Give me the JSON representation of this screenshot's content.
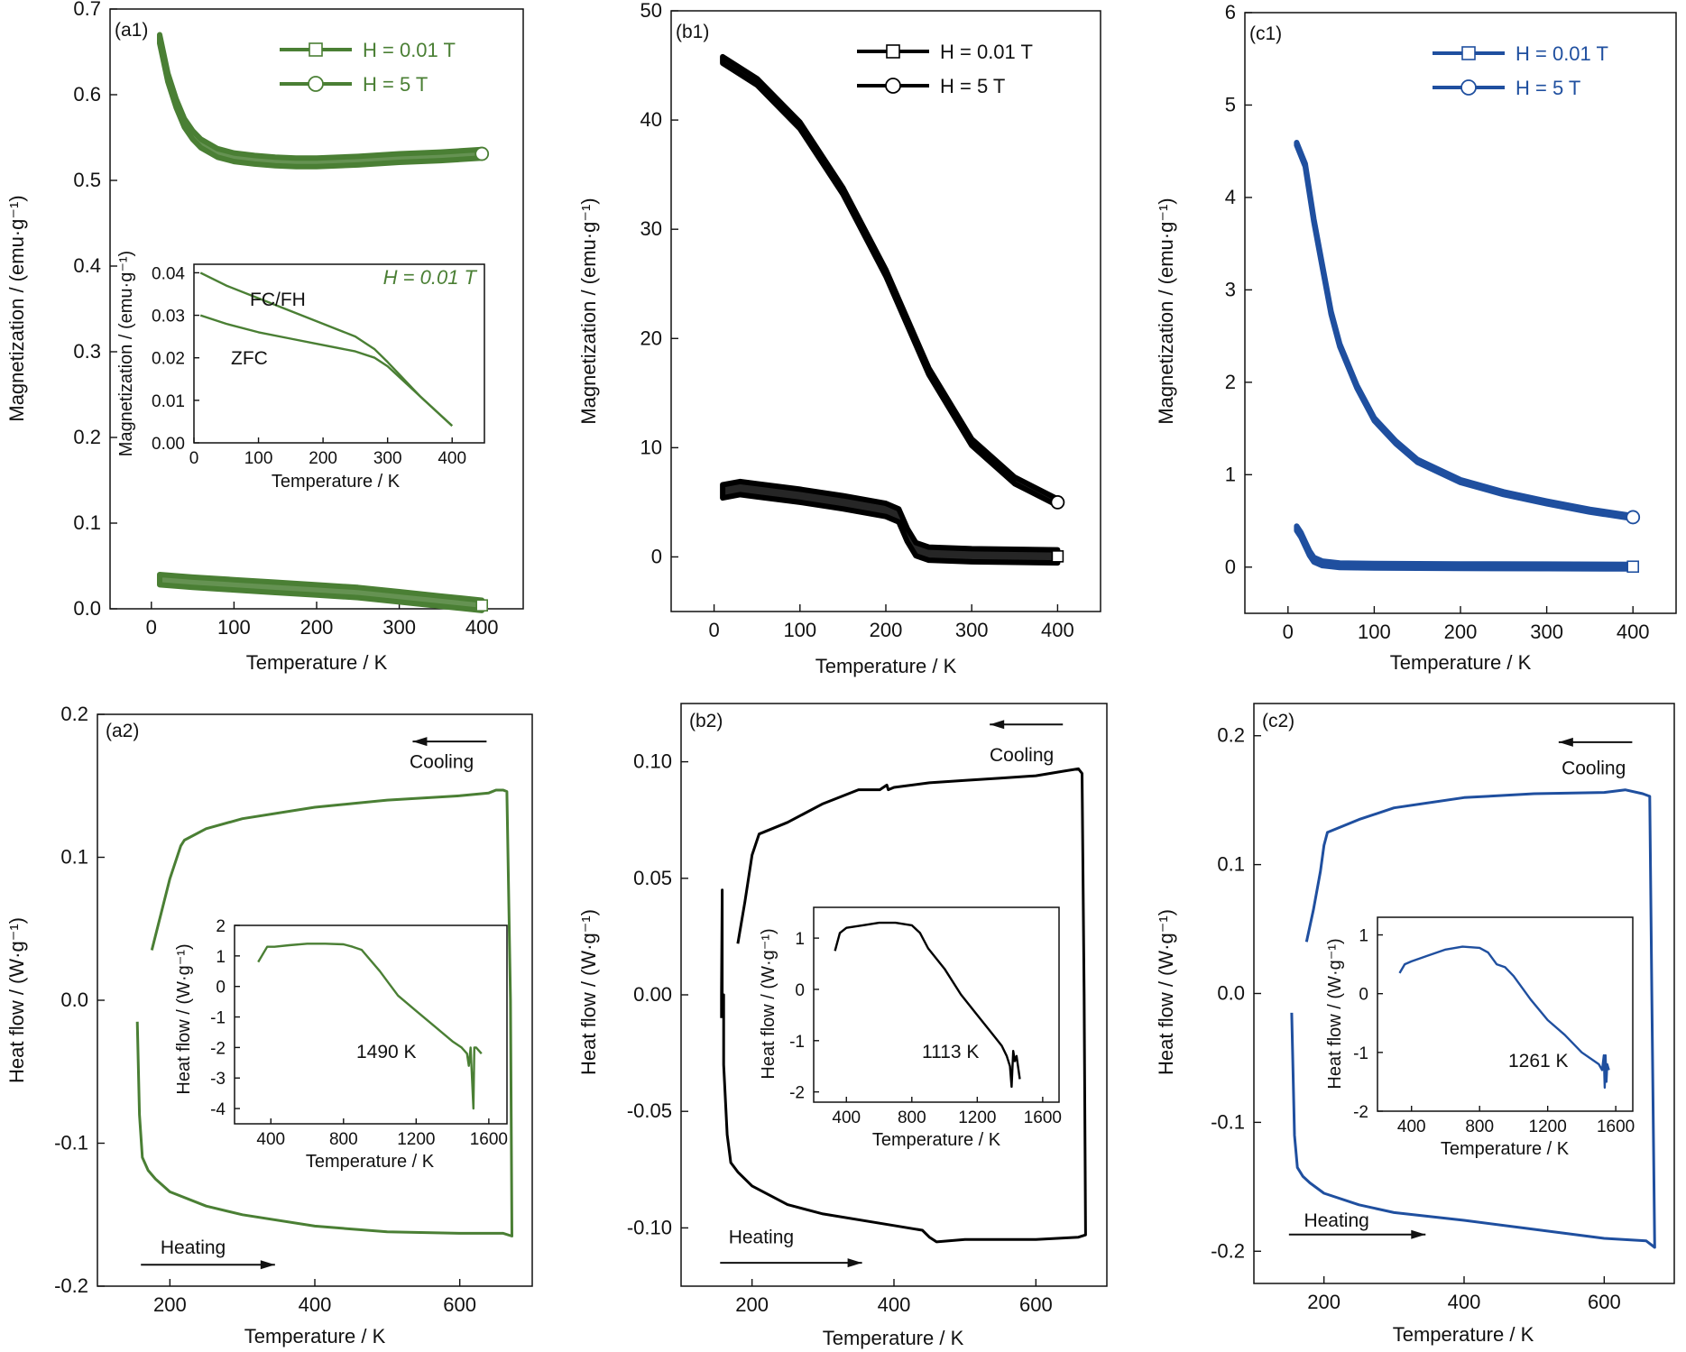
{
  "chart_data": [
    {
      "id": "a1",
      "type": "scatter",
      "panel_label": "(a1)",
      "color": "#4a7f34",
      "xlabel": "Temperature / K",
      "ylabel": "Magnetization / (emu·g⁻¹)",
      "xlim": [
        -50,
        450
      ],
      "ylim": [
        0,
        0.7
      ],
      "xticks": [
        0,
        100,
        200,
        300,
        400
      ],
      "yticks": [
        0.0,
        0.1,
        0.2,
        0.3,
        0.4,
        0.5,
        0.6,
        0.7
      ],
      "ytick_labels": [
        "0.0",
        "0.1",
        "0.2",
        "0.3",
        "0.4",
        "0.5",
        "0.6",
        "0.7"
      ],
      "legend": [
        "H = 0.01 T",
        "H = 5 T"
      ],
      "legend_position": "top-right",
      "series": [
        {
          "name": "H = 0.01 T",
          "marker": "square",
          "band": 0.012,
          "x": [
            10,
            50,
            100,
            150,
            200,
            250,
            300,
            350,
            400
          ],
          "y": [
            0.034,
            0.031,
            0.028,
            0.025,
            0.022,
            0.019,
            0.014,
            0.009,
            0.004
          ]
        },
        {
          "name": "H = 5 T",
          "marker": "circle",
          "band": 0.01,
          "x": [
            10,
            20,
            30,
            40,
            50,
            60,
            80,
            100,
            125,
            150,
            175,
            200,
            250,
            300,
            350,
            400
          ],
          "y": [
            0.665,
            0.62,
            0.59,
            0.567,
            0.553,
            0.543,
            0.532,
            0.527,
            0.524,
            0.522,
            0.521,
            0.521,
            0.523,
            0.526,
            0.528,
            0.531
          ]
        }
      ],
      "inset": {
        "xlabel": "Temperature / K",
        "ylabel": "Magnetization / (emu·g⁻¹)",
        "xlim": [
          0,
          450
        ],
        "ylim": [
          0,
          0.042
        ],
        "xticks": [
          0,
          100,
          200,
          300,
          400
        ],
        "xtick_labels": [
          "0",
          "100",
          "200",
          "300",
          "400"
        ],
        "yticks": [
          0,
          0.01,
          0.02,
          0.03,
          0.04
        ],
        "ytick_labels": [
          "0.00",
          "0.01",
          "0.02",
          "0.03",
          "0.04"
        ],
        "title_note": "H = 0.01 T",
        "series": [
          {
            "name": "FC/FH",
            "x": [
              10,
              50,
              100,
              150,
              200,
              250,
              280,
              300,
              350,
              400
            ],
            "y": [
              0.04,
              0.037,
              0.034,
              0.031,
              0.028,
              0.025,
              0.022,
              0.019,
              0.011,
              0.004
            ]
          },
          {
            "name": "ZFC",
            "x": [
              10,
              50,
              100,
              150,
              200,
              250,
              280,
              300,
              350,
              400
            ],
            "y": [
              0.03,
              0.028,
              0.026,
              0.0245,
              0.023,
              0.0215,
              0.02,
              0.018,
              0.011,
              0.004
            ]
          }
        ],
        "annotations": [
          {
            "text": "FC/FH",
            "x": 265,
            "y": 0.032
          },
          {
            "text": "ZFC",
            "x": 100,
            "y": 0.0225
          }
        ]
      }
    },
    {
      "id": "b1",
      "type": "scatter",
      "panel_label": "(b1)",
      "color": "#000000",
      "xlabel": "Temperature / K",
      "ylabel": "Magnetization / (emu·g⁻¹)",
      "xlim": [
        -50,
        450
      ],
      "ylim": [
        -5,
        50
      ],
      "xticks": [
        0,
        100,
        200,
        300,
        400
      ],
      "yticks": [
        0,
        10,
        20,
        30,
        40,
        50
      ],
      "ytick_labels": [
        "0",
        "10",
        "20",
        "30",
        "40",
        "50"
      ],
      "legend": [
        "H = 0.01 T",
        "H = 5 T"
      ],
      "legend_position": "top-right",
      "series": [
        {
          "name": "H = 0.01 T",
          "marker": "square",
          "band": 1.2,
          "x": [
            10,
            30,
            50,
            100,
            150,
            200,
            215,
            225,
            235,
            250,
            300,
            350,
            400
          ],
          "y": [
            6.0,
            6.3,
            6.1,
            5.6,
            5.0,
            4.3,
            3.8,
            2.0,
            0.7,
            0.3,
            0.15,
            0.1,
            0.05
          ]
        },
        {
          "name": "H = 5 T",
          "marker": "circle",
          "band": 0.6,
          "x": [
            10,
            50,
            100,
            150,
            200,
            250,
            300,
            350,
            400
          ],
          "y": [
            45.5,
            43.5,
            39.5,
            33.5,
            26.0,
            17.0,
            10.5,
            7.0,
            5.0
          ]
        }
      ]
    },
    {
      "id": "c1",
      "type": "scatter",
      "panel_label": "(c1)",
      "color": "#1f4f9f",
      "xlabel": "Temperature / K",
      "ylabel": "Magnetization / (emu·g⁻¹)",
      "xlim": [
        -50,
        450
      ],
      "ylim": [
        -0.5,
        6
      ],
      "xticks": [
        0,
        100,
        200,
        300,
        400
      ],
      "yticks": [
        0,
        1,
        2,
        3,
        4,
        5,
        6
      ],
      "ytick_labels": [
        "0",
        "1",
        "2",
        "3",
        "4",
        "5",
        "6"
      ],
      "legend": [
        "H = 0.01 T",
        "H = 5 T"
      ],
      "legend_position": "top-right",
      "series": [
        {
          "name": "H = 0.01 T",
          "marker": "square",
          "band": 0.05,
          "x": [
            10,
            15,
            20,
            25,
            30,
            40,
            60,
            100,
            200,
            300,
            400
          ],
          "y": [
            0.42,
            0.35,
            0.25,
            0.15,
            0.08,
            0.04,
            0.02,
            0.015,
            0.01,
            0.008,
            0.005
          ]
        },
        {
          "name": "H = 5 T",
          "marker": "circle",
          "band": 0.03,
          "x": [
            10,
            20,
            30,
            40,
            50,
            60,
            80,
            100,
            125,
            150,
            200,
            250,
            300,
            350,
            400
          ],
          "y": [
            4.58,
            4.35,
            3.75,
            3.25,
            2.75,
            2.4,
            1.95,
            1.6,
            1.35,
            1.15,
            0.93,
            0.8,
            0.7,
            0.61,
            0.54
          ]
        }
      ]
    },
    {
      "id": "a2",
      "type": "line",
      "panel_label": "(a2)",
      "color": "#4a7f34",
      "xlabel": "Temperature / K",
      "ylabel": "Heat flow / (W·g⁻¹)",
      "xlim": [
        100,
        700
      ],
      "ylim": [
        -0.2,
        0.2
      ],
      "xticks": [
        200,
        400,
        600
      ],
      "yticks": [
        -0.2,
        -0.1,
        0.0,
        0.1,
        0.2
      ],
      "ytick_labels": [
        "-0.2",
        "-0.1",
        "0.0",
        "0.1",
        "0.2"
      ],
      "annotations": [
        {
          "text": "Cooling",
          "x": 575,
          "y": 0.167
        },
        {
          "text": "Heating",
          "x": 232,
          "y": -0.173
        }
      ],
      "arrows": [
        {
          "x0": 637,
          "x1": 535,
          "y": 0.181
        },
        {
          "x0": 160,
          "x1": 345,
          "y": -0.185
        }
      ],
      "series": [
        {
          "name": "",
          "x": [
            175,
            185,
            200,
            215,
            220,
            250,
            300,
            400,
            500,
            600,
            640,
            650,
            660,
            665,
            670,
            672,
            660,
            600,
            500,
            400,
            300,
            250,
            200,
            180,
            170,
            162,
            158,
            155
          ],
          "y": [
            0.035,
            0.055,
            0.085,
            0.108,
            0.112,
            0.12,
            0.127,
            0.135,
            0.14,
            0.143,
            0.145,
            0.147,
            0.147,
            0.146,
            0.0,
            -0.165,
            -0.163,
            -0.163,
            -0.162,
            -0.158,
            -0.15,
            -0.144,
            -0.134,
            -0.125,
            -0.119,
            -0.11,
            -0.08,
            -0.015
          ]
        }
      ],
      "inset": {
        "xlabel": "Temperature / K",
        "ylabel": "Heat flow / (W·g⁻¹)",
        "xlim": [
          200,
          1700
        ],
        "ylim": [
          -4.5,
          2
        ],
        "xticks": [
          400,
          800,
          1200,
          1600
        ],
        "xtick_labels": [
          "400",
          "800",
          "1200",
          "1600"
        ],
        "yticks": [
          -4,
          -3,
          -2,
          -1,
          0,
          1,
          2
        ],
        "ytick_labels": [
          "-4",
          "-3",
          "-2",
          "-1",
          "0",
          "1",
          "2"
        ],
        "note": "1490 K",
        "series": [
          {
            "name": "",
            "x": [
              330,
              380,
              420,
              500,
              600,
              700,
              800,
              850,
              900,
              1000,
              1050,
              1100,
              1200,
              1300,
              1400,
              1450,
              1480,
              1490,
              1500,
              1510,
              1515,
              1520,
              1530,
              1560
            ],
            "y": [
              0.8,
              1.3,
              1.3,
              1.35,
              1.4,
              1.4,
              1.38,
              1.3,
              1.2,
              0.5,
              0.1,
              -0.3,
              -0.8,
              -1.3,
              -1.8,
              -2.0,
              -2.2,
              -2.6,
              -2.0,
              -3.3,
              -4.0,
              -2.0,
              -2.0,
              -2.2
            ]
          }
        ]
      }
    },
    {
      "id": "b2",
      "type": "line",
      "panel_label": "(b2)",
      "color": "#000000",
      "xlabel": "Temperature / K",
      "ylabel": "Heat flow / (W·g⁻¹)",
      "xlim": [
        100,
        700
      ],
      "ylim": [
        -0.125,
        0.125
      ],
      "xticks": [
        200,
        400,
        600
      ],
      "yticks": [
        -0.1,
        -0.05,
        0.0,
        0.05,
        0.1
      ],
      "ytick_labels": [
        "-0.10",
        "-0.05",
        "0.00",
        "0.05",
        "0.10"
      ],
      "annotations": [
        {
          "text": "Cooling",
          "x": 580,
          "y": 0.103
        },
        {
          "text": "Heating",
          "x": 213,
          "y": -0.104
        }
      ],
      "arrows": [
        {
          "x0": 638,
          "x1": 535,
          "y": 0.116
        },
        {
          "x0": 155,
          "x1": 355,
          "y": -0.115
        }
      ],
      "series": [
        {
          "name": "",
          "x": [
            180,
            190,
            200,
            210,
            250,
            300,
            350,
            380,
            390,
            392,
            400,
            450,
            500,
            550,
            600,
            640,
            660,
            665,
            668,
            670,
            660,
            600,
            500,
            460,
            450,
            440,
            400,
            300,
            250,
            200,
            180,
            170,
            165,
            160,
            160,
            158,
            158,
            157,
            157
          ],
          "y": [
            0.022,
            0.04,
            0.06,
            0.069,
            0.074,
            0.082,
            0.088,
            0.088,
            0.09,
            0.088,
            0.089,
            0.091,
            0.092,
            0.093,
            0.094,
            0.096,
            0.097,
            0.095,
            0.0,
            -0.103,
            -0.104,
            -0.105,
            -0.105,
            -0.106,
            -0.104,
            -0.101,
            -0.099,
            -0.094,
            -0.09,
            -0.082,
            -0.076,
            -0.072,
            -0.06,
            -0.03,
            0.0,
            -0.005,
            0.045,
            0.0,
            -0.01
          ]
        }
      ],
      "inset": {
        "xlabel": "Temperature / K",
        "ylabel": "Heat flow / (W·g⁻¹)",
        "xlim": [
          200,
          1700
        ],
        "ylim": [
          -2.2,
          1.6
        ],
        "xticks": [
          400,
          800,
          1200,
          1600
        ],
        "xtick_labels": [
          "400",
          "800",
          "1200",
          "1600"
        ],
        "yticks": [
          -2,
          -1,
          0,
          1
        ],
        "ytick_labels": [
          "-2",
          "-1",
          "0",
          "1"
        ],
        "note": "1113 K",
        "series": [
          {
            "name": "",
            "x": [
              330,
              360,
              400,
              500,
              600,
              700,
              800,
              850,
              900,
              1000,
              1100,
              1200,
              1300,
              1350,
              1380,
              1400,
              1410,
              1420,
              1430,
              1440,
              1460
            ],
            "y": [
              0.75,
              1.1,
              1.2,
              1.25,
              1.3,
              1.3,
              1.25,
              1.1,
              0.8,
              0.4,
              -0.1,
              -0.5,
              -0.9,
              -1.1,
              -1.3,
              -1.5,
              -1.9,
              -1.2,
              -1.4,
              -1.3,
              -1.75
            ]
          }
        ]
      }
    },
    {
      "id": "c2",
      "type": "line",
      "panel_label": "(c2)",
      "color": "#1f4f9f",
      "xlabel": "Temperature / K",
      "ylabel": "Heat flow / (W·g⁻¹)",
      "xlim": [
        100,
        700
      ],
      "ylim": [
        -0.225,
        0.225
      ],
      "xticks": [
        200,
        400,
        600
      ],
      "yticks": [
        -0.2,
        -0.1,
        0.0,
        0.1,
        0.2
      ],
      "ytick_labels": [
        "-0.2",
        "-0.1",
        "0.0",
        "0.1",
        "0.2"
      ],
      "annotations": [
        {
          "text": "Cooling",
          "x": 585,
          "y": 0.175
        },
        {
          "text": "Heating",
          "x": 218,
          "y": -0.176
        }
      ],
      "arrows": [
        {
          "x0": 640,
          "x1": 535,
          "y": 0.195
        },
        {
          "x0": 150,
          "x1": 345,
          "y": -0.187
        }
      ],
      "series": [
        {
          "name": "",
          "x": [
            175,
            185,
            195,
            200,
            205,
            250,
            300,
            400,
            500,
            600,
            630,
            655,
            665,
            668,
            672,
            660,
            600,
            500,
            400,
            300,
            250,
            200,
            180,
            170,
            162,
            158,
            154
          ],
          "y": [
            0.04,
            0.065,
            0.095,
            0.115,
            0.125,
            0.135,
            0.144,
            0.152,
            0.155,
            0.156,
            0.158,
            0.155,
            0.153,
            0.0,
            -0.197,
            -0.192,
            -0.19,
            -0.183,
            -0.176,
            -0.17,
            -0.164,
            -0.155,
            -0.147,
            -0.142,
            -0.135,
            -0.11,
            -0.015
          ]
        }
      ],
      "inset": {
        "xlabel": "Temperature / K",
        "ylabel": "Heat flow / (W·g⁻¹)",
        "xlim": [
          200,
          1700
        ],
        "ylim": [
          -2,
          1.3
        ],
        "xticks": [
          400,
          800,
          1200,
          1600
        ],
        "xtick_labels": [
          "400",
          "800",
          "1200",
          "1600"
        ],
        "yticks": [
          -2,
          -1,
          0,
          1
        ],
        "ytick_labels": [
          "-2",
          "-1",
          "0",
          "1"
        ],
        "note": "1261 K",
        "series": [
          {
            "name": "",
            "x": [
              330,
              360,
              400,
              500,
              600,
              700,
              800,
              850,
              900,
              950,
              1000,
              1100,
              1200,
              1300,
              1400,
              1500,
              1520,
              1530,
              1535,
              1540,
              1545,
              1550,
              1560
            ],
            "y": [
              0.35,
              0.5,
              0.55,
              0.65,
              0.75,
              0.8,
              0.78,
              0.7,
              0.5,
              0.45,
              0.3,
              -0.1,
              -0.45,
              -0.7,
              -1.0,
              -1.2,
              -1.3,
              -1.05,
              -1.6,
              -1.05,
              -1.5,
              -1.2,
              -1.3
            ]
          }
        ]
      }
    }
  ],
  "inset_labels": {
    "a1_fcfh": "FC/FH",
    "a1_zfc": "ZFC",
    "a1_note": "H = 0.01 T"
  },
  "arrow_labels": {
    "cooling": "Cooling",
    "heating": "Heating"
  }
}
